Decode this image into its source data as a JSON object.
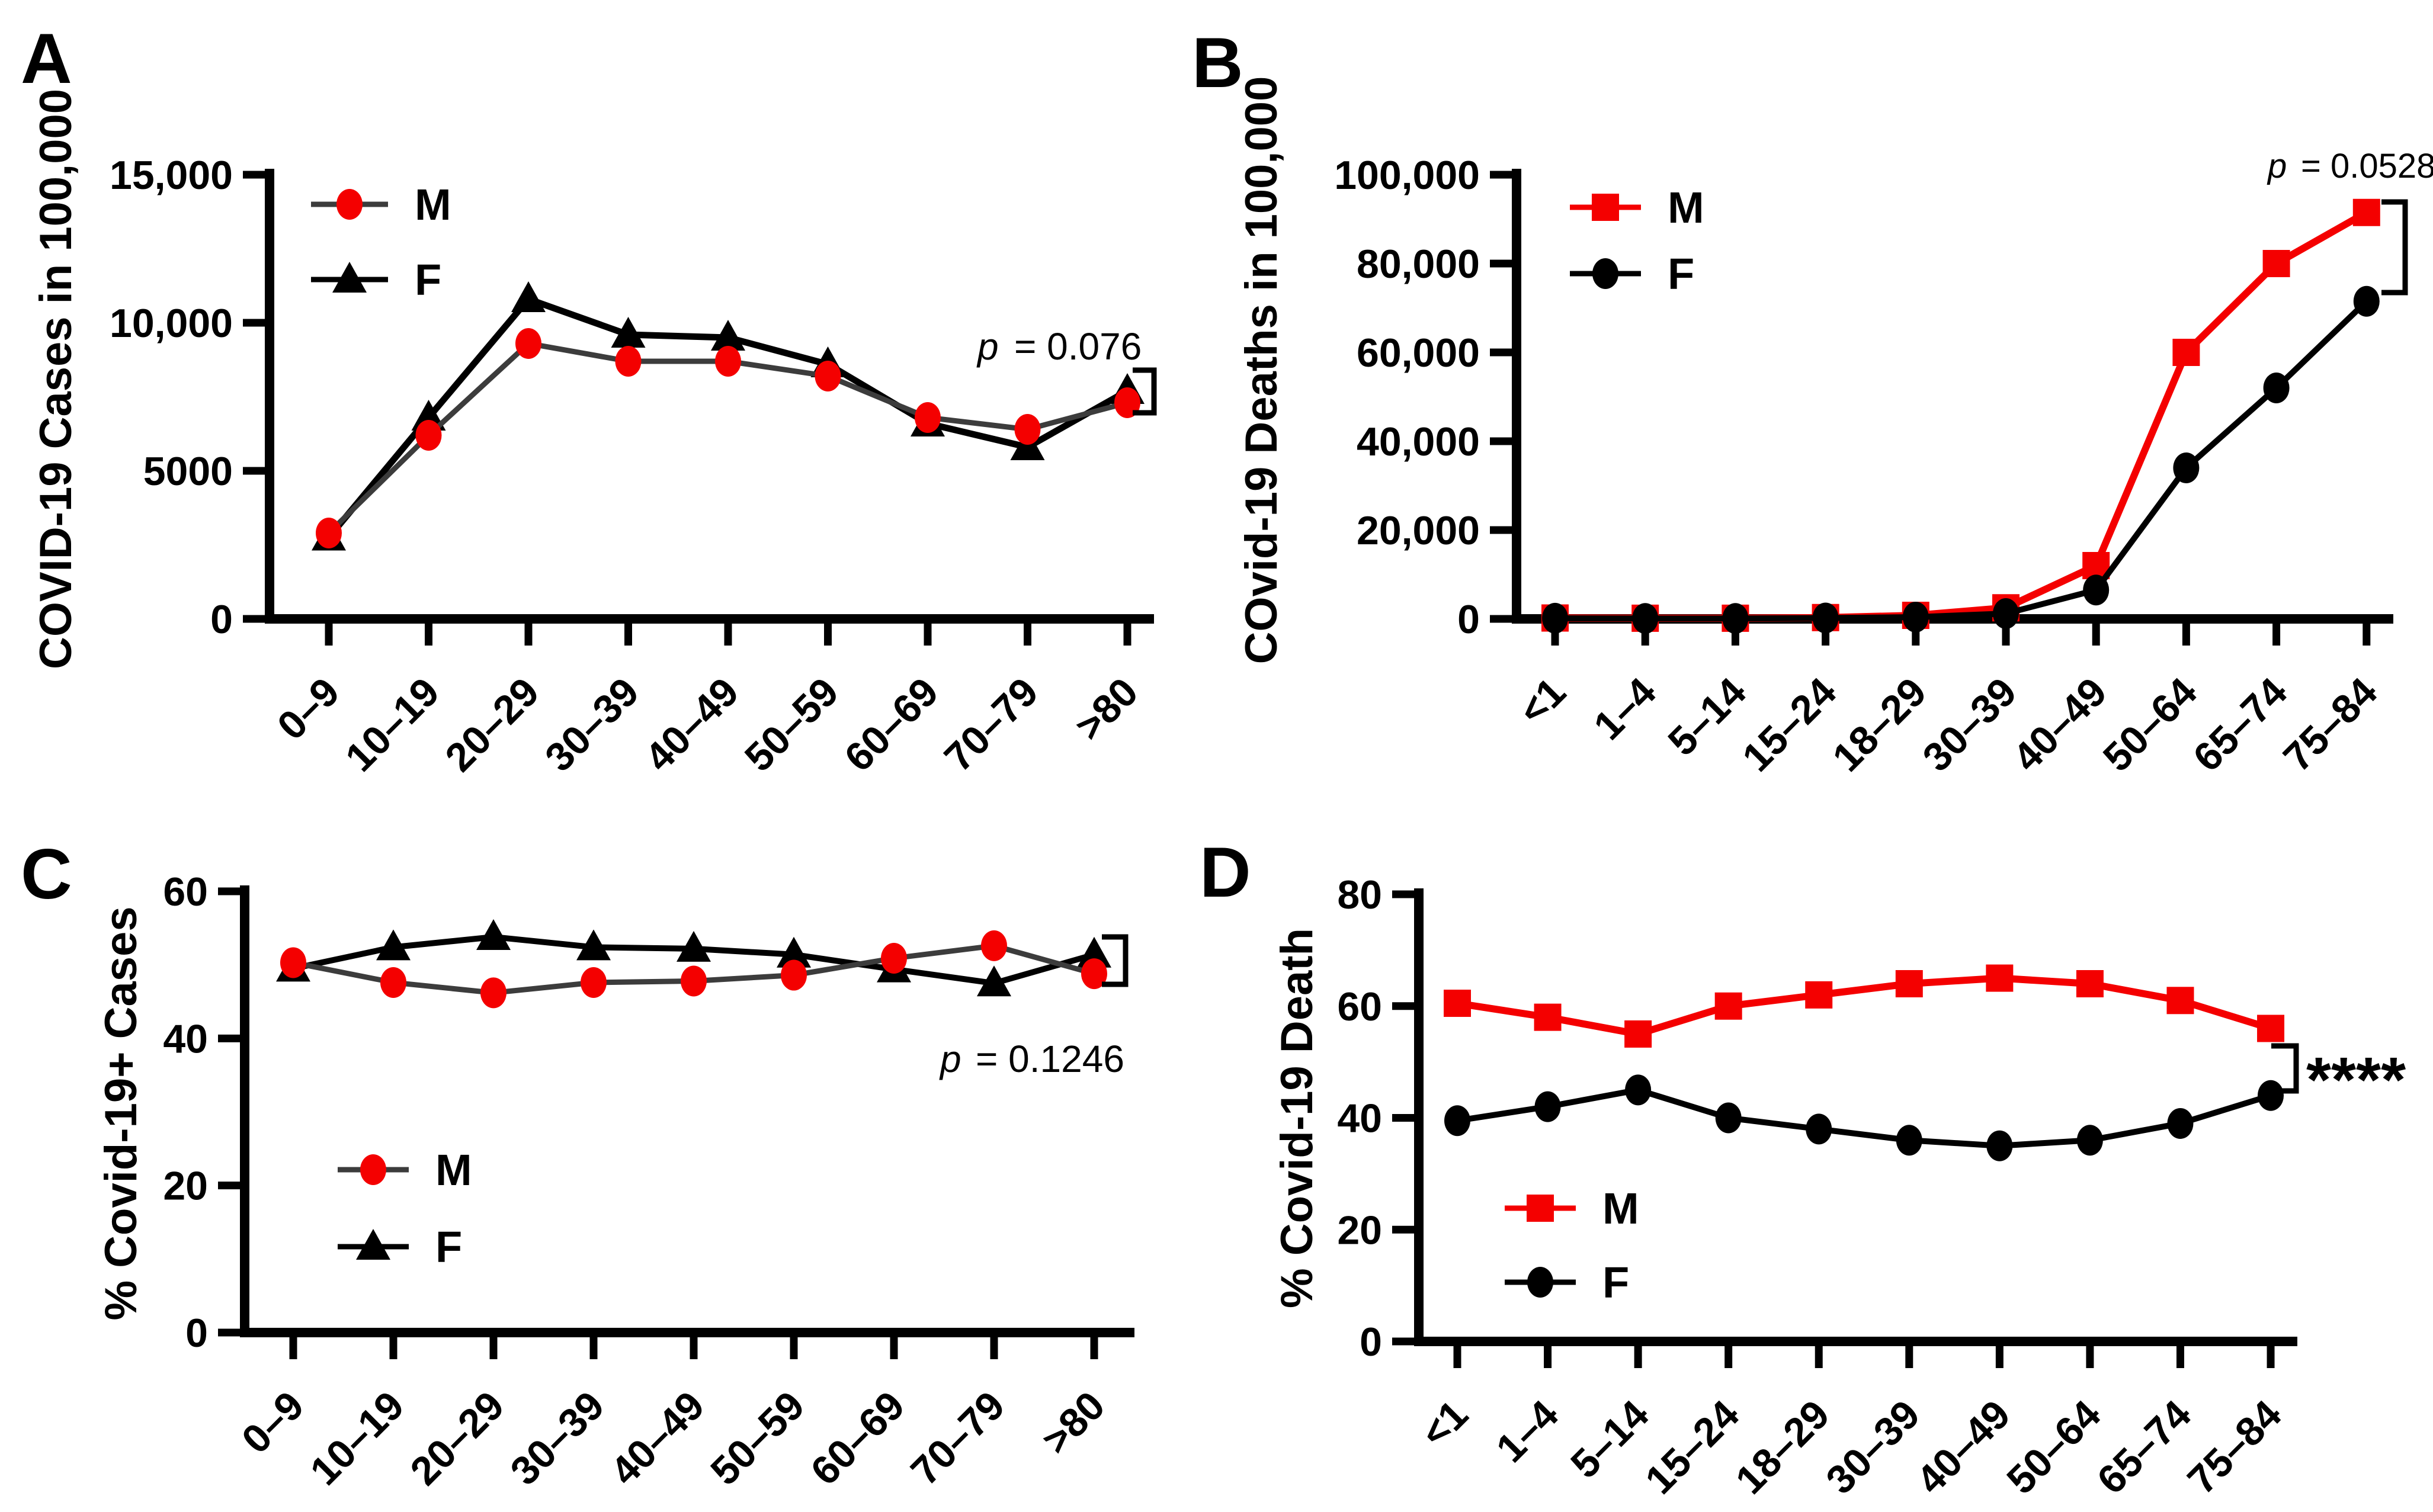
{
  "figure_background": "#ffffff",
  "accent_red": "#f40000",
  "line_gray": "#3c3c3c",
  "line_black": "#000000",
  "chart_data": [
    {
      "panel": "A",
      "type": "line",
      "title": "",
      "xlabel": "",
      "ylabel": "COVID-19 Cases in 100,000",
      "ylim": [
        0,
        15000
      ],
      "grid": false,
      "legend_position": "top-left",
      "yticks": [
        {
          "value": 0,
          "label": "0"
        },
        {
          "value": 5000,
          "label": "5000"
        },
        {
          "value": 10000,
          "label": "10,000"
        },
        {
          "value": 15000,
          "label": "15,000"
        }
      ],
      "categories": [
        "0–9",
        "10–19",
        "20–29",
        "30–39",
        "40–49",
        "50–59",
        "60–69",
        "70–79",
        ">80"
      ],
      "series": [
        {
          "name": "M",
          "marker": "circle",
          "marker_color": "#f40000",
          "line_color": "#3c3c3c",
          "line_width": 9,
          "values": [
            2900,
            6200,
            9300,
            8700,
            8700,
            8200,
            6800,
            6400,
            7300
          ]
        },
        {
          "name": "F",
          "marker": "triangle",
          "marker_color": "#000000",
          "line_color": "#000000",
          "line_width": 11,
          "values": [
            2750,
            6800,
            10800,
            9600,
            9500,
            8600,
            6600,
            5800,
            7700
          ]
        }
      ],
      "annotation": {
        "p_symbol": "p",
        "p_text": "= 0.076",
        "stars": null
      }
    },
    {
      "panel": "B",
      "type": "line",
      "title": "",
      "xlabel": "",
      "ylabel": "COvid-19 Deaths in 100,000",
      "ylim": [
        0,
        100000
      ],
      "grid": false,
      "legend_position": "top-left",
      "yticks": [
        {
          "value": 0,
          "label": "0"
        },
        {
          "value": 20000,
          "label": "20,000"
        },
        {
          "value": 40000,
          "label": "40,000"
        },
        {
          "value": 60000,
          "label": "60,000"
        },
        {
          "value": 80000,
          "label": "80,000"
        },
        {
          "value": 100000,
          "label": "100,000"
        }
      ],
      "categories": [
        "<1",
        "1–4",
        "5–14",
        "15–24",
        "18–29",
        "30–39",
        "40–49",
        "50–64",
        "65–74",
        "75–84"
      ],
      "series": [
        {
          "name": "M",
          "marker": "square",
          "marker_color": "#f40000",
          "line_color": "#f40000",
          "line_width": 12,
          "values": [
            200,
            150,
            150,
            300,
            800,
            2500,
            12000,
            60000,
            80000,
            91500
          ]
        },
        {
          "name": "F",
          "marker": "circle",
          "marker_color": "#000000",
          "line_color": "#000000",
          "line_width": 10,
          "values": [
            150,
            100,
            100,
            200,
            400,
            1200,
            6500,
            34000,
            52000,
            71500
          ]
        }
      ],
      "annotation": {
        "p_symbol": "p",
        "p_text": "= 0.0528",
        "stars": null
      }
    },
    {
      "panel": "C",
      "type": "line",
      "title": "",
      "xlabel": "",
      "ylabel": "% Covid-19+ Cases",
      "ylim": [
        0,
        60
      ],
      "grid": false,
      "legend_position": "bottom-left",
      "yticks": [
        {
          "value": 0,
          "label": "0"
        },
        {
          "value": 20,
          "label": "20"
        },
        {
          "value": 40,
          "label": "40"
        },
        {
          "value": 60,
          "label": "60"
        }
      ],
      "categories": [
        "0–9",
        "10–19",
        "20–29",
        "30–39",
        "40–49",
        "50–59",
        "60–69",
        "70–79",
        ">80"
      ],
      "series": [
        {
          "name": "M",
          "marker": "circle",
          "marker_color": "#f40000",
          "line_color": "#3c3c3c",
          "line_width": 9,
          "values": [
            50.3,
            47.6,
            46.2,
            47.6,
            47.8,
            48.6,
            50.9,
            52.6,
            48.8
          ]
        },
        {
          "name": "F",
          "marker": "triangle",
          "marker_color": "#000000",
          "line_color": "#000000",
          "line_width": 10,
          "values": [
            49.5,
            52.4,
            53.8,
            52.4,
            52.2,
            51.4,
            49.4,
            47.5,
            51.4
          ]
        }
      ],
      "annotation": {
        "p_symbol": "p",
        "p_text": "= 0.1246",
        "stars": null
      }
    },
    {
      "panel": "D",
      "type": "line",
      "title": "",
      "xlabel": "",
      "ylabel": "% Covid-19 Death",
      "ylim": [
        0,
        80
      ],
      "grid": false,
      "legend_position": "bottom-left",
      "yticks": [
        {
          "value": 0,
          "label": "0"
        },
        {
          "value": 20,
          "label": "20"
        },
        {
          "value": 40,
          "label": "40"
        },
        {
          "value": 60,
          "label": "60"
        },
        {
          "value": 80,
          "label": "80"
        }
      ],
      "categories": [
        "<1",
        "1–4",
        "5–14",
        "15–24",
        "18–29",
        "30–39",
        "40–49",
        "50–64",
        "65–74",
        "75–84"
      ],
      "series": [
        {
          "name": "M",
          "marker": "square",
          "marker_color": "#f40000",
          "line_color": "#f40000",
          "line_width": 12,
          "values": [
            60.5,
            58,
            55,
            60,
            62,
            64,
            65,
            64,
            61,
            56
          ]
        },
        {
          "name": "F",
          "marker": "circle",
          "marker_color": "#000000",
          "line_color": "#000000",
          "line_width": 10,
          "values": [
            39.5,
            42,
            45,
            40,
            38,
            36,
            35,
            36,
            39,
            44
          ]
        }
      ],
      "annotation": {
        "p_symbol": null,
        "p_text": null,
        "stars": "****"
      }
    }
  ]
}
